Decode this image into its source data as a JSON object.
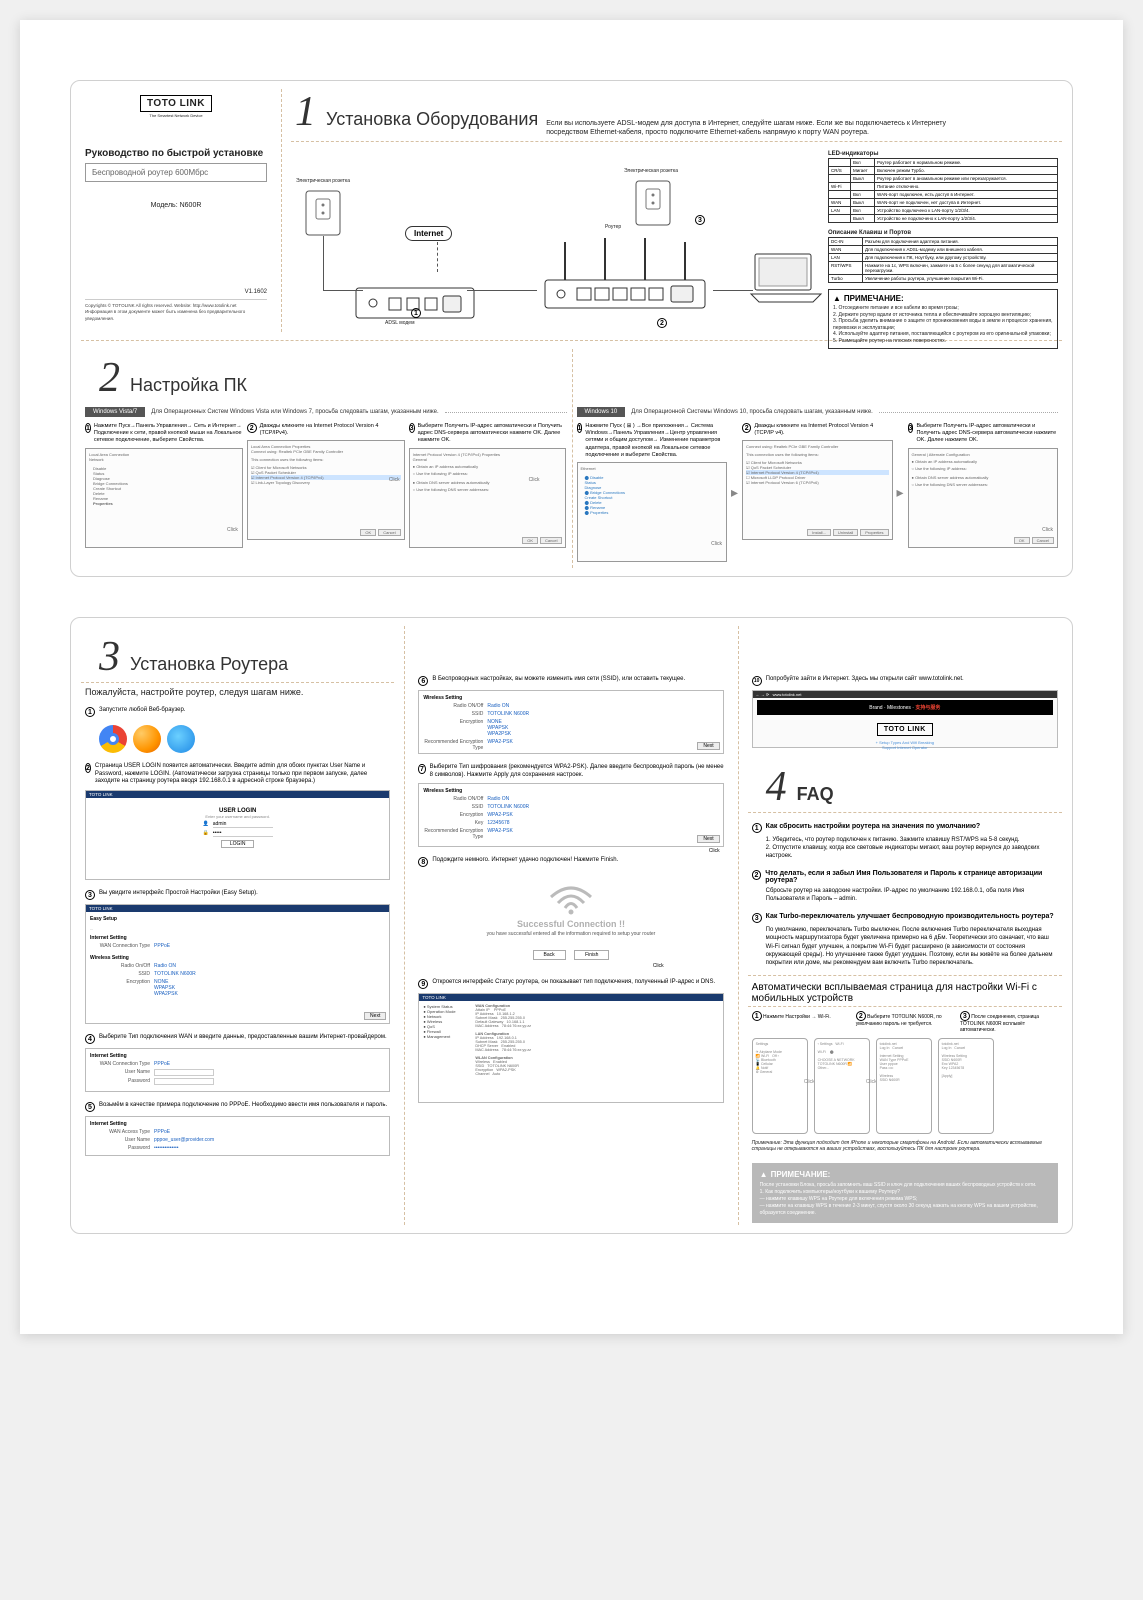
{
  "brand": {
    "name": "TOTO LINK",
    "sub": "The Smartest Network Device"
  },
  "cover": {
    "title": "Руководство по быстрой установке",
    "subtitle": "Беспроводной роутер 600Мбрс",
    "model_label": "Модель:",
    "model": "N600R",
    "version": "V1.1602",
    "copyright": "Copyrights © TOTOLINK All rights reserved. Website: http://www.totolink.net\nИнформация в этом документе может быть изменена без предварительного уведомления."
  },
  "hw": {
    "title": "Установка Оборудования",
    "desc": "Если вы используете ADSL-модем для доступа в Интернет, следуйте шагам ниже. Если же вы подключаетесь к Интернету посредством Ethernet-кабеля, просто подключите Ethernet-кабель напрямую к порту WAN роутера.",
    "internet": "Internet",
    "modem_label": "ADSL модем",
    "router_label": "Роутер",
    "power_label": "Электрическая розетка",
    "led_header": "LED-индикаторы",
    "leds": [
      [
        "",
        "Вкл",
        "Роутер работает в нормальном режиме."
      ],
      [
        "CR/S",
        "Мигает",
        "Включен режим Турбо."
      ],
      [
        "",
        "Выкл",
        "Роутер работает в аномальном режиме или перезагружается."
      ],
      [
        "Wi-Fi",
        "",
        "Питание отключено."
      ],
      [
        "",
        "Вкл",
        "WAN-порт подключен, есть доступ в Интернет."
      ],
      [
        "WAN",
        "Выкл",
        "WAN-порт не подключен, нет доступа в Интернет."
      ],
      [
        "LAN",
        "Вкл",
        "Устройство подключено к LAN-порту 1/2/3/4."
      ],
      [
        "",
        "Выкл",
        "Устройство не подключено к LAN-порту 1/2/3/4."
      ]
    ],
    "ports_header": "Описание Клавиш и Портов",
    "ports": [
      [
        "DC-IN",
        "Разъём для подключения адаптера питания."
      ],
      [
        "WAN",
        "Для подключения к ADSL-модему или внешнего кабеля."
      ],
      [
        "LAN",
        "Для подключения к ПК, Ноутбуку, или другому устройству."
      ],
      [
        "RST/WPS",
        "Нажмите на 1с, WPS включен, зажмите на 5 с более секунд для автоматической перезагрузки."
      ],
      [
        "Turbo",
        "Увеличение работы роутера, улучшение покрытия Wi-Fi."
      ]
    ],
    "notice_title": "ПРИМЕЧАНИЕ:",
    "notice_body": "1. Отсоедините питание и все кабели во время грозы;\n2. Держите роутер вдали от источника тепла и обеспечивайте хорошую вентиляцию;\n3. Просьба уделить внимание о защите от проникновения воды в земле и процессе хранения, перевозки и эксплуатации;\n4. Используйте адаптер питания, поставляющийся с роутером из его оригинальной упаковки;\n5. Размещайте роутер на плоских поверхностях."
  },
  "pc": {
    "title": "Настройка ПК",
    "vista_label": "Windows Vista/7",
    "vista_desc": "Для Операционных Систем Windows Vista или Windows 7, просьба следовать шагам, указанным ниже.",
    "win10_label": "Windows 10",
    "win10_desc": "Для Операционной Системы Windows 10, просьба следовать шагам, указанным ниже.",
    "steps_vista": [
      "Нажмите Пуск→Панель Управления→ Сеть и Интернет→ Подключение к сети, правой кнопкой мыши на Локальное сетевое подключение, выберите Свойства.",
      "Дважды кликните на Internet Protocol Version 4 (TCP/IPv4).",
      "Выберите Получить IP-адрес автоматически и Получить адрес DNS-сервера автоматически нажмите OK. Далее нажмите OK."
    ],
    "steps_win10": [
      "Нажмите Пуск ( ⊞ ) →Все приложения→ Система Windows→Панель Управления→Центр управления сетями и общим доступом→ Изменение параметров адаптера, правой кнопкой на Локальное сетевое подключение и выберите Свойства.",
      "Дважды кликните на Internet Protocol Version 4 (TCP/IP v4).",
      "Выберите Получить IP-адрес автоматически и Получить адрес DNS-сервера автоматически нажмите OK. Далее нажмите OK."
    ],
    "ok": "OK",
    "cancel": "Cancel",
    "click": "Click"
  },
  "router": {
    "title": "Установка Роутера",
    "intro": "Пожалуйста, настройте роутер, следуя шагам ниже.",
    "s1": "Запустите любой Веб-браузер.",
    "s2": "Страница USER LOGIN появится автоматически. Введите admin для обоих пунктах User Name и Password, нажмите LOGIN. (Автоматически загрузка страницы только при первом запуске, далее заходите на страницу роутера вводя 192.168.0.1 в адресной строке браузера.)",
    "s3": "Вы увидите интерфейс Простой Настройки (Easy Setup).",
    "s4": "Выберите Тип подключения WAN и введите данные, предоставленные вашим Интернет-провайдером.",
    "s5": "Возьмём в качестве примера подключение по PPPoE. Необходимо ввести имя пользователя и пароль.",
    "s6": "В Беспроводных настройках, вы можете изменить имя сети (SSID), или оставить текущее.",
    "s7": "Выберите Тип шифрования (рекомендуется WPA2-PSK). Далее введите беспроводной пароль (не менее 8 символов). Нажмите Apply для сохранения настроек.",
    "s8": "Подождите немного. Интернет удачно подключен! Нажмите Finish.",
    "s9": "Откроется интерфейс Статус роутера, он показывает тип подключения, полученный IP-адрес и DNS.",
    "s10": "Попробуйте зайти в Интернет. Здесь мы открыли сайт www.totolink.net.",
    "success_t": "Successful Connection !!",
    "success_s": "you have successful entered all the information required to setup your router",
    "back": "Back",
    "finish": "Finish",
    "next": "Next",
    "login": "LOGIN",
    "mocks": {
      "wireless": "Wireless Setting",
      "radio": "Radio ON",
      "ssid_k": "SSID",
      "ssid_v": "TOTOLINK N600R",
      "enc_k": "Encryption",
      "enc_v": "WPA2",
      "rec_enc_k": "Recommended Encryption Type",
      "rec_enc_v": "WPA2-PSK",
      "key_k": "Key",
      "key_v": "12345678",
      "internet": "Internet Setting",
      "wan_k": "WAN Connection Type",
      "wan_v": "PPPoE",
      "user_k": "User Name",
      "pass_k": "Password",
      "wan_access_k": "WAN Access Type"
    }
  },
  "faq": {
    "title": "FAQ",
    "q1": "Как сбросить настройки роутера на значения по умолчанию?",
    "a1": "1. Убедитесь, что роутер подключен к питанию. Зажмите клавишу RST/WPS на 5-8 секунд.\n2. Отпустите клавишу, когда все световые индикаторы мигают, ваш роутер вернулся до заводских настроек.",
    "q2": "Что делать, если я забыл Имя Пользователя и Пароль к странице авторизации роутера?",
    "a2": "Сбросьте роутер на заводские настройки. IP-адрес по умолчанию 192.168.0.1, оба поля Имя Пользователя и Пароль – admin.",
    "q3": "Как Turbo-переключатель улучшает беспроводную производительность роутера?",
    "a3": "По умолчанию, переключатель Turbo выключен. После включения Turbo переключателя выходная мощность маршрутизатора будет увеличена примерно на 6 дБм. Теоретически это означает, что ваш Wi-Fi сигнал будет улучшен, а покрытие Wi-Fi будет расширено (в зависимости от состояния окружающей среды). Но улучшение также будет ухудшен. Поэтому, если вы живёте на более дальнем покрытии или доме, мы рекомендуем вам включить Turbo переключатель."
  },
  "mobile": {
    "title": "Автоматически всплываемая страница для настройки Wi-Fi с мобильных устройств",
    "s1": "Нажмите Настройки → Wi-Fi.",
    "s2": "Выберите TOTOLINK N600R, по умолчанию пароль не требуется.",
    "s3": "После соединения, страница TOTOLINK N600R всплывёт автоматически.",
    "note": "Примечание: Эта функция подходит для iPhone и некоторые смартфоны на Android. Если автоматически всплываемые страницы не открываются на ваших устройствах, воспользуйтесь ПК для настроек роутера."
  },
  "notice2": {
    "title": "ПРИМЕЧАНИЕ:",
    "body": "После установки Блока, просьба запомнить ваш SSID и ключ для подключения ваших беспроводных устройств к сети.\n1. Как подключить компьютеры/ноутбуки к вашему Роутеру?\n— нажмите клавишу WPS на Роутере для включения режима WPS;\n— нажмите на клавишу WPS в течение 2-3 минут, спустя около 30 секунд нажать на кнопку WPS на вашем устройстве, образуется соединение."
  },
  "colors": {
    "dash": "#d6c0a3",
    "bar": "#1a3a6e",
    "grey_notice": "#b9b9b9"
  }
}
